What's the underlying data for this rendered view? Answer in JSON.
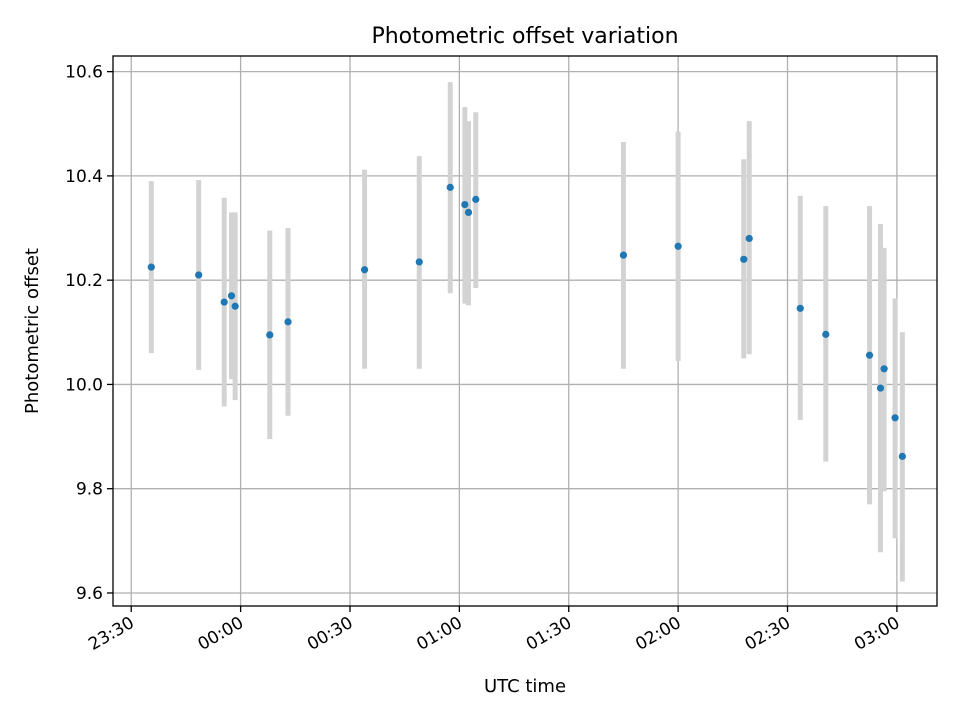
{
  "chart_data": {
    "type": "scatter",
    "title": "Photometric offset variation",
    "xlabel": "UTC time",
    "ylabel": "Photometric offset",
    "xlim": [
      "23:25",
      "03:11"
    ],
    "ylim": [
      9.575,
      10.63
    ],
    "x_ticks": [
      "23:30",
      "00:00",
      "00:30",
      "01:00",
      "01:30",
      "02:00",
      "02:30",
      "03:00"
    ],
    "y_ticks": [
      "9.6",
      "9.8",
      "10.0",
      "10.2",
      "10.4",
      "10.6"
    ],
    "y_tick_values": [
      9.6,
      9.8,
      10.0,
      10.2,
      10.4,
      10.6
    ],
    "grid": true,
    "marker_color": "#1f77b4",
    "errorbar_color": "#d3d3d3",
    "points": [
      {
        "time": "23:35:30",
        "y": 10.225,
        "ylow": 10.06,
        "yhigh": 10.39
      },
      {
        "time": "23:48:30",
        "y": 10.21,
        "ylow": 10.028,
        "yhigh": 10.392
      },
      {
        "time": "23:55:30",
        "y": 10.158,
        "ylow": 9.958,
        "yhigh": 10.358
      },
      {
        "time": "23:57:30",
        "y": 10.17,
        "ylow": 10.01,
        "yhigh": 10.33
      },
      {
        "time": "23:58:30",
        "y": 10.15,
        "ylow": 9.97,
        "yhigh": 10.33
      },
      {
        "time": "00:08:00",
        "y": 10.095,
        "ylow": 9.895,
        "yhigh": 10.295
      },
      {
        "time": "00:13:00",
        "y": 10.12,
        "ylow": 9.94,
        "yhigh": 10.3
      },
      {
        "time": "00:34:00",
        "y": 10.22,
        "ylow": 10.03,
        "yhigh": 10.412
      },
      {
        "time": "00:49:00",
        "y": 10.235,
        "ylow": 10.03,
        "yhigh": 10.438
      },
      {
        "time": "00:57:30",
        "y": 10.378,
        "ylow": 10.175,
        "yhigh": 10.58
      },
      {
        "time": "01:01:30",
        "y": 10.345,
        "ylow": 10.155,
        "yhigh": 10.532
      },
      {
        "time": "01:02:30",
        "y": 10.33,
        "ylow": 10.152,
        "yhigh": 10.505
      },
      {
        "time": "01:04:30",
        "y": 10.355,
        "ylow": 10.185,
        "yhigh": 10.522
      },
      {
        "time": "01:45:00",
        "y": 10.248,
        "ylow": 10.03,
        "yhigh": 10.465
      },
      {
        "time": "02:00:00",
        "y": 10.265,
        "ylow": 10.045,
        "yhigh": 10.485
      },
      {
        "time": "02:18:00",
        "y": 10.24,
        "ylow": 10.05,
        "yhigh": 10.432
      },
      {
        "time": "02:19:30",
        "y": 10.28,
        "ylow": 10.058,
        "yhigh": 10.505
      },
      {
        "time": "02:33:30",
        "y": 10.146,
        "ylow": 9.932,
        "yhigh": 10.362
      },
      {
        "time": "02:40:30",
        "y": 10.096,
        "ylow": 9.852,
        "yhigh": 10.342
      },
      {
        "time": "02:52:30",
        "y": 10.056,
        "ylow": 9.77,
        "yhigh": 10.342
      },
      {
        "time": "02:55:30",
        "y": 9.993,
        "ylow": 9.678,
        "yhigh": 10.308
      },
      {
        "time": "02:56:30",
        "y": 10.03,
        "ylow": 9.795,
        "yhigh": 10.262
      },
      {
        "time": "02:59:30",
        "y": 9.936,
        "ylow": 9.705,
        "yhigh": 10.165
      },
      {
        "time": "03:01:30",
        "y": 9.862,
        "ylow": 9.622,
        "yhigh": 10.1
      }
    ]
  }
}
